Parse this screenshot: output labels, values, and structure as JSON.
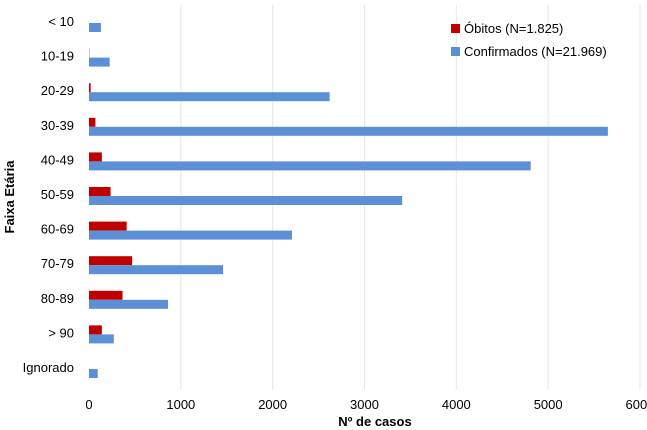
{
  "chart_data": {
    "type": "bar",
    "orientation": "horizontal",
    "title": "",
    "xlabel": "Nº de casos",
    "ylabel": "Faixa Etária",
    "categories": [
      "< 10",
      "10-19",
      "20-29",
      "30-39",
      "40-49",
      "50-59",
      "60-69",
      "70-79",
      "80-89",
      "> 90",
      "Ignorado"
    ],
    "series": [
      {
        "name": "Óbitos (N=1.825)",
        "color": "#c00000",
        "values": [
          0,
          3,
          18,
          70,
          140,
          235,
          410,
          470,
          365,
          140,
          0
        ]
      },
      {
        "name": "Confirmados (N=21.969)",
        "color": "#5b8fd6",
        "values": [
          130,
          225,
          2620,
          5650,
          4810,
          3410,
          2210,
          1460,
          860,
          270,
          95
        ]
      }
    ],
    "xlim": [
      0,
      6000
    ],
    "xticks": [
      "0",
      "1000",
      "2000",
      "3000",
      "4000",
      "5000",
      "6000"
    ],
    "grid": "vertical",
    "legend_position": "top-right"
  }
}
